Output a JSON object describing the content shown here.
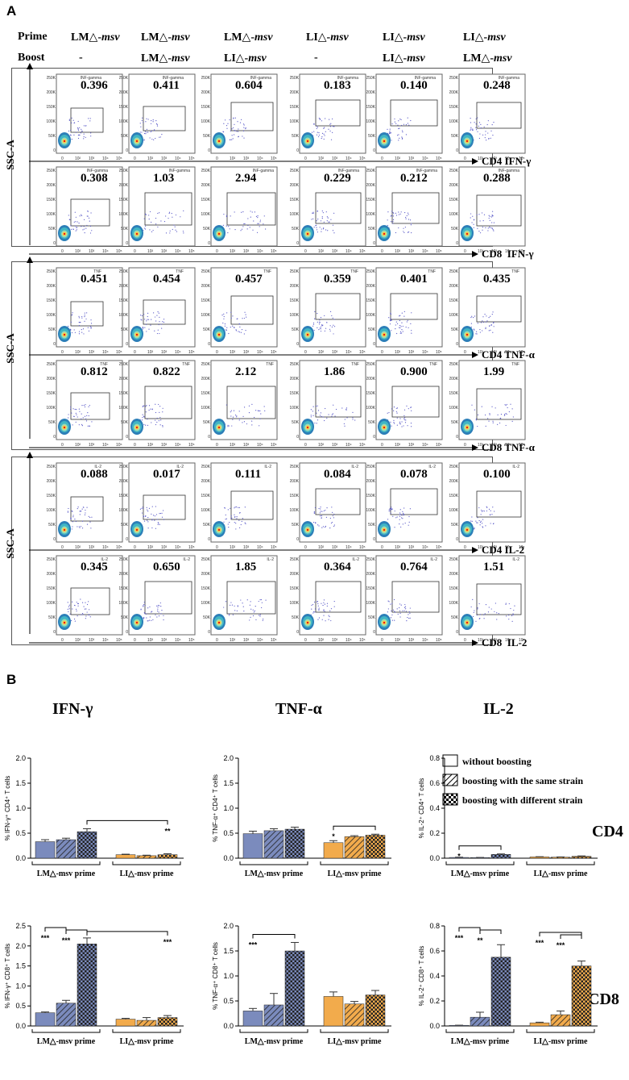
{
  "panel_labels": {
    "a": "A",
    "b": "B"
  },
  "header": {
    "prime_label": "Prime",
    "boost_label": "Boost",
    "columns": [
      {
        "prime": "LM△-msv",
        "boost": "-"
      },
      {
        "prime": "LM△-msv",
        "boost": "LM△-msv"
      },
      {
        "prime": "LM△-msv",
        "boost": "LI△-msv"
      },
      {
        "prime": "LI△-msv",
        "boost": "-"
      },
      {
        "prime": "LI△-msv",
        "boost": "LI△-msv"
      },
      {
        "prime": "LI△-msv",
        "boost": "LM△-msv"
      }
    ]
  },
  "flow_groups": [
    {
      "y_axis": "SSC-A",
      "rows": [
        {
          "axis_label": "CD4 IFN-γ",
          "gate_label": "INF-gamma",
          "values": [
            "0.396",
            "0.411",
            "0.604",
            "0.183",
            "0.140",
            "0.248"
          ]
        },
        {
          "axis_label": "CD8  IFN-γ",
          "gate_label": "INF-gamma",
          "values": [
            "0.308",
            "1.03",
            "2.94",
            "0.229",
            "0.212",
            "0.288"
          ]
        }
      ]
    },
    {
      "y_axis": "SSC-A",
      "rows": [
        {
          "axis_label": "CD4 TNF-α",
          "gate_label": "TNF",
          "values": [
            "0.451",
            "0.454",
            "0.457",
            "0.359",
            "0.401",
            "0.435"
          ]
        },
        {
          "axis_label": "CD8 TNF-α",
          "gate_label": "TNF",
          "values": [
            "0.812",
            "0.822",
            "2.12",
            "1.86",
            "0.900",
            "1.99"
          ]
        }
      ]
    },
    {
      "y_axis": "SSC-A",
      "rows": [
        {
          "axis_label": "CD4 IL-2",
          "gate_label": "IL-2",
          "values": [
            "0.088",
            "0.017",
            "0.111",
            "0.084",
            "0.078",
            "0.100"
          ]
        },
        {
          "axis_label": "CD8  IL-2",
          "gate_label": "IL-2",
          "values": [
            "0.345",
            "0.650",
            "1.85",
            "0.364",
            "0.764",
            "1.51"
          ]
        }
      ]
    }
  ],
  "cytokine_titles": [
    "IFN-γ",
    "TNF-α",
    "IL-2"
  ],
  "row_labels": [
    "CD4",
    "CD8"
  ],
  "legend": [
    "without boosting",
    "boosting with the same strain",
    "boosting with different strain"
  ],
  "group_labels": [
    "LM△-msv prime",
    "LI△-msv prime"
  ],
  "colors": {
    "lm": "#7b8bbd",
    "li": "#f2ab4c"
  },
  "chart_data": [
    {
      "type": "bar",
      "title": "IFN-γ",
      "ylabel": "% IFN-γ⁺ CD4⁺ T cells",
      "ylim": [
        0,
        2.0
      ],
      "ticks": [
        "0.0",
        "0.5",
        "1.0",
        "1.5",
        "2.0"
      ],
      "series": [
        {
          "name": "LM△-msv prime",
          "values": [
            0.33,
            0.37,
            0.53
          ],
          "errors": [
            0.04,
            0.03,
            0.06
          ]
        },
        {
          "name": "LI△-msv prime",
          "values": [
            0.07,
            0.05,
            0.07
          ],
          "errors": [
            0.01,
            0.01,
            0.02
          ]
        }
      ],
      "annotations": [
        {
          "from": [
            0,
            2
          ],
          "to": [
            1,
            2
          ],
          "label": "**",
          "label_at": "right"
        }
      ]
    },
    {
      "type": "bar",
      "title": "TNF-α",
      "ylabel": "% TNF-α⁺ CD4⁺ T cells",
      "ylim": [
        0,
        2.0
      ],
      "ticks": [
        "0.0",
        "0.5",
        "1.0",
        "1.5",
        "2.0"
      ],
      "series": [
        {
          "name": "LM△-msv prime",
          "values": [
            0.49,
            0.55,
            0.58
          ],
          "errors": [
            0.05,
            0.04,
            0.04
          ]
        },
        {
          "name": "LI△-msv prime",
          "values": [
            0.31,
            0.43,
            0.46
          ],
          "errors": [
            0.04,
            0.02,
            0.02
          ]
        }
      ],
      "annotations": [
        {
          "from": [
            1,
            0
          ],
          "to": [
            1,
            2
          ],
          "label": "*",
          "label_at": "left"
        }
      ]
    },
    {
      "type": "bar",
      "title": "IL-2",
      "ylabel": "% IL-2⁺ CD4⁺ T cells",
      "ylim": [
        0,
        0.8
      ],
      "ticks": [
        "0.0",
        "0.2",
        "0.4",
        "0.6",
        "0.8"
      ],
      "series": [
        {
          "name": "LM△-msv prime",
          "values": [
            0.006,
            0.004,
            0.03
          ],
          "errors": [
            0.002,
            0.002,
            0.004
          ]
        },
        {
          "name": "LI△-msv prime",
          "values": [
            0.01,
            0.008,
            0.015
          ],
          "errors": [
            0.002,
            0.002,
            0.003
          ]
        }
      ],
      "annotations": [
        {
          "from": [
            0,
            0
          ],
          "to": [
            0,
            2
          ],
          "label": "*",
          "label_at": "left"
        }
      ]
    },
    {
      "type": "bar",
      "title": "",
      "ylabel": "% IFN-γ⁺ CD8⁺ T cells",
      "ylim": [
        0,
        2.5
      ],
      "ticks": [
        "0.0",
        "0.5",
        "1.0",
        "1.5",
        "2.0",
        "2.5"
      ],
      "series": [
        {
          "name": "LM△-msv prime",
          "values": [
            0.33,
            0.57,
            2.05
          ],
          "errors": [
            0.02,
            0.07,
            0.15
          ]
        },
        {
          "name": "LI△-msv prime",
          "values": [
            0.17,
            0.14,
            0.21
          ],
          "errors": [
            0.02,
            0.07,
            0.05
          ]
        }
      ],
      "annotations": [
        {
          "from": [
            0,
            0
          ],
          "to": [
            0,
            1
          ],
          "label": "***",
          "label_at": "left"
        },
        {
          "from": [
            0,
            1
          ],
          "to": [
            0,
            2
          ],
          "label": "***",
          "label_at": "left"
        },
        {
          "from": [
            0,
            2
          ],
          "to": [
            1,
            2
          ],
          "label": "***",
          "label_at": "right"
        }
      ]
    },
    {
      "type": "bar",
      "title": "",
      "ylabel": "% TNF-α⁺ CD8⁺ T cells",
      "ylim": [
        0,
        2.0
      ],
      "ticks": [
        "0.0",
        "0.5",
        "1.0",
        "1.5",
        "2.0"
      ],
      "series": [
        {
          "name": "LM△-msv prime",
          "values": [
            0.3,
            0.42,
            1.5
          ],
          "errors": [
            0.05,
            0.23,
            0.17
          ]
        },
        {
          "name": "LI△-msv prime",
          "values": [
            0.59,
            0.44,
            0.62
          ],
          "errors": [
            0.09,
            0.05,
            0.09
          ]
        }
      ],
      "annotations": [
        {
          "from": [
            0,
            0
          ],
          "to": [
            0,
            2
          ],
          "label": "***",
          "label_at": "left"
        }
      ]
    },
    {
      "type": "bar",
      "title": "",
      "ylabel": "% IL-2⁺ CD8⁺ T cells",
      "ylim": [
        0,
        0.8
      ],
      "ticks": [
        "0.0",
        "0.2",
        "0.4",
        "0.6",
        "0.8"
      ],
      "series": [
        {
          "name": "LM△-msv prime",
          "values": [
            0.004,
            0.07,
            0.55
          ],
          "errors": [
            0.002,
            0.04,
            0.1
          ]
        },
        {
          "name": "LI△-msv prime",
          "values": [
            0.025,
            0.09,
            0.48
          ],
          "errors": [
            0.005,
            0.03,
            0.04
          ]
        }
      ],
      "annotations": [
        {
          "from": [
            0,
            0
          ],
          "to": [
            0,
            1
          ],
          "label": "***",
          "label_at": "left"
        },
        {
          "from": [
            0,
            1
          ],
          "to": [
            0,
            2
          ],
          "label": "**",
          "label_at": "left"
        },
        {
          "from": [
            1,
            0
          ],
          "to": [
            1,
            2
          ],
          "label": "***",
          "label_at": "left"
        },
        {
          "from": [
            1,
            1
          ],
          "to": [
            1,
            2
          ],
          "label": "***",
          "label_at": "left"
        }
      ]
    }
  ]
}
